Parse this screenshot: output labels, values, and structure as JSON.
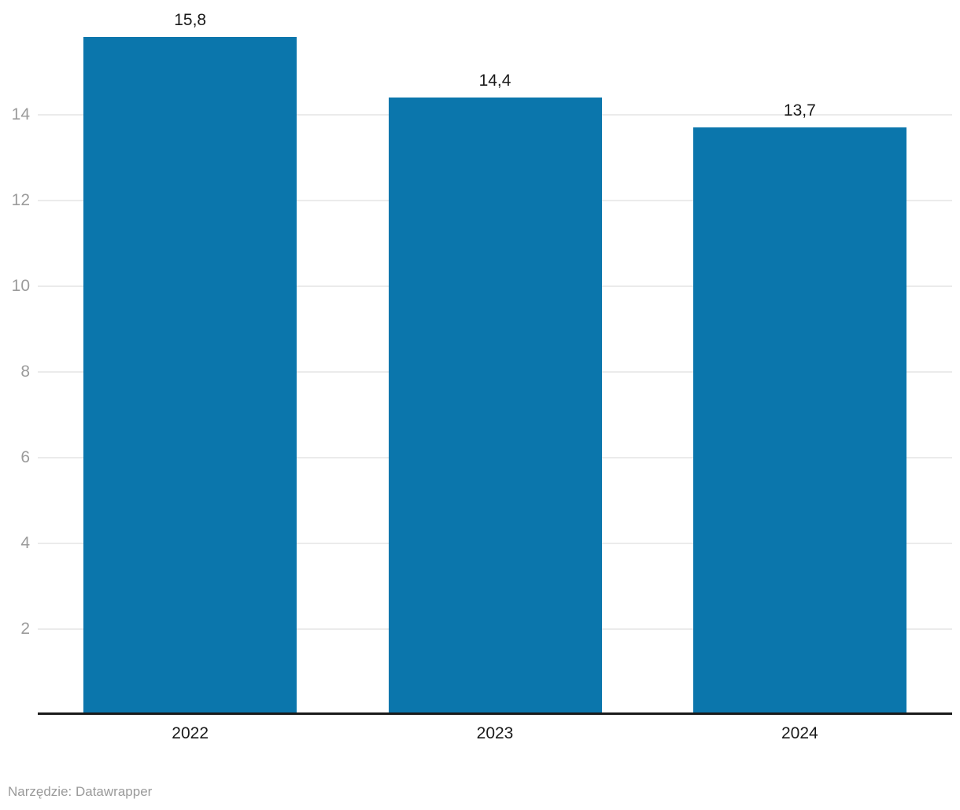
{
  "chart_data": {
    "type": "bar",
    "categories": [
      "2022",
      "2023",
      "2024"
    ],
    "values": [
      15.8,
      14.4,
      13.7
    ],
    "value_labels": [
      "15,8",
      "14,4",
      "13,7"
    ],
    "title": "",
    "xlabel": "",
    "ylabel": "",
    "y_ticks": [
      2,
      4,
      6,
      8,
      10,
      12,
      14
    ],
    "ylim": [
      0,
      16.6
    ],
    "grid": true,
    "legend_position": "none",
    "decimal_separator": ","
  },
  "footer": {
    "text": "Narzędzie: Datawrapper"
  },
  "colors": {
    "bar": "#0b76ac",
    "gridline": "#ebebeb",
    "tick_label": "#9b9b9b",
    "axis_line": "#1a1a1a",
    "value_label": "#1a1a1a",
    "category_label": "#1a1a1a",
    "footer_text": "#9a9a9a",
    "background": "#ffffff"
  }
}
